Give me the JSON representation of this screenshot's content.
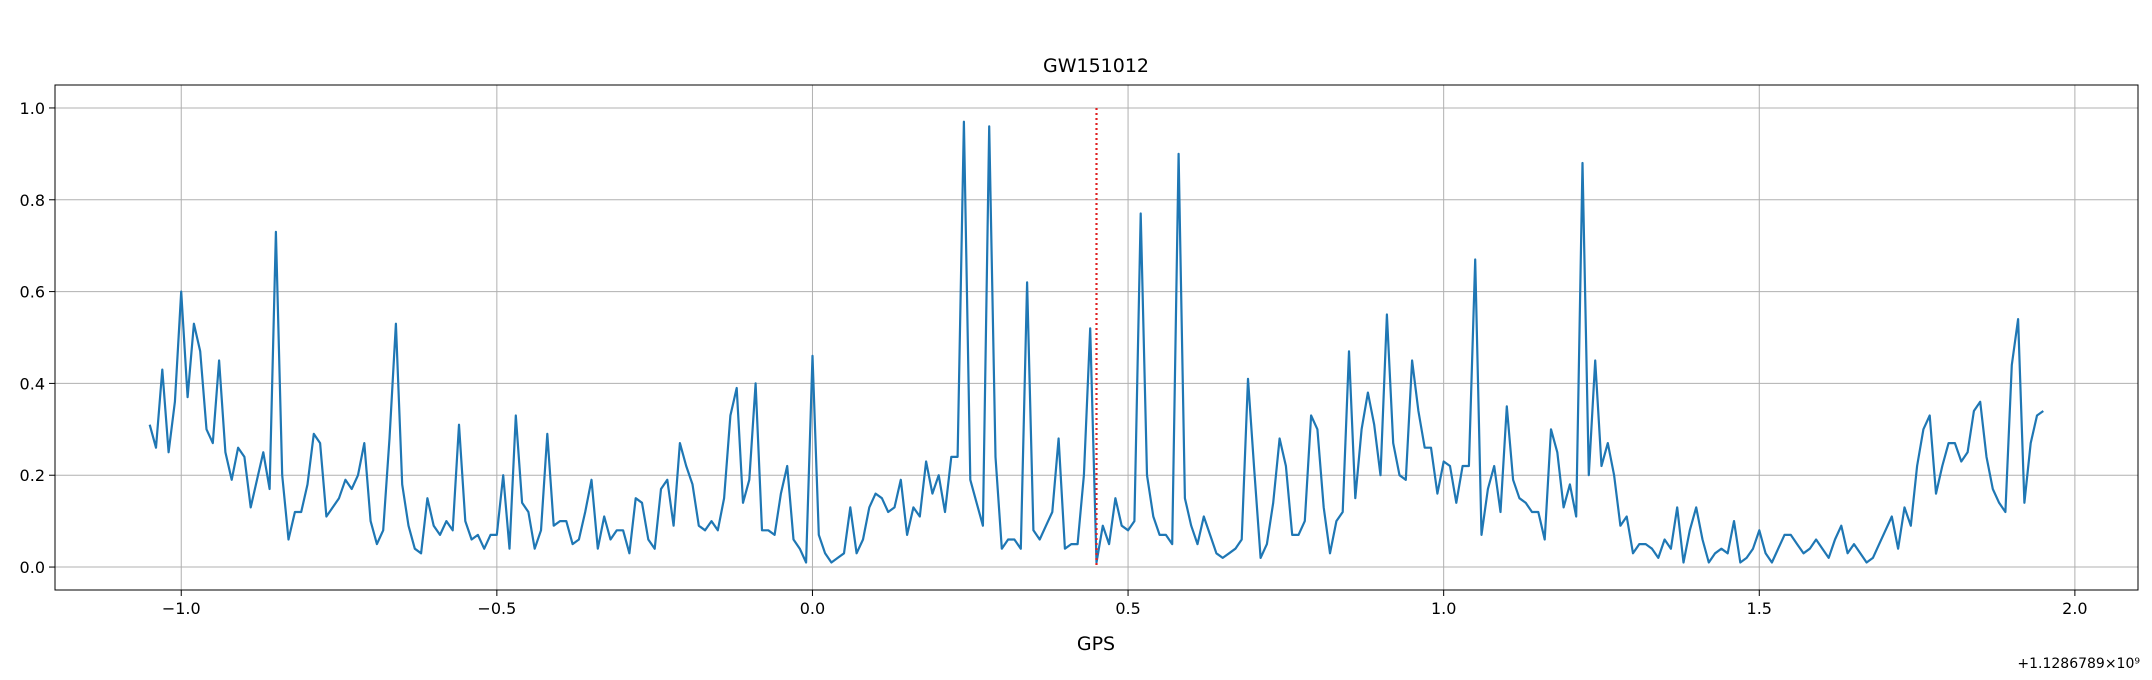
{
  "chart_data": {
    "type": "line",
    "title": "GW151012",
    "xlabel": "GPS",
    "ylabel": "",
    "x_offset_label": "+1.1286789×10⁹",
    "xlim": [
      -1.2,
      2.1
    ],
    "ylim": [
      -0.05,
      1.05
    ],
    "xticks": [
      -1.0,
      -0.5,
      0.0,
      0.5,
      1.0,
      1.5,
      2.0
    ],
    "xtick_labels": [
      "−1.0",
      "−0.5",
      "0.0",
      "0.5",
      "1.0",
      "1.5",
      "2.0"
    ],
    "yticks": [
      0.0,
      0.2,
      0.4,
      0.6,
      0.8,
      1.0
    ],
    "ytick_labels": [
      "0.0",
      "0.2",
      "0.4",
      "0.6",
      "0.8",
      "1.0"
    ],
    "grid": true,
    "series": [
      {
        "color": "#1f77b4",
        "x": [
          -1.05,
          -1.04,
          -1.03,
          -1.02,
          -1.01,
          -1.0,
          -0.99,
          -0.98,
          -0.97,
          -0.96,
          -0.95,
          -0.94,
          -0.93,
          -0.92,
          -0.91,
          -0.9,
          -0.89,
          -0.88,
          -0.87,
          -0.86,
          -0.85,
          -0.84,
          -0.83,
          -0.82,
          -0.81,
          -0.8,
          -0.79,
          -0.78,
          -0.77,
          -0.76,
          -0.75,
          -0.74,
          -0.73,
          -0.72,
          -0.71,
          -0.7,
          -0.69,
          -0.68,
          -0.67,
          -0.66,
          -0.65,
          -0.64,
          -0.63,
          -0.62,
          -0.61,
          -0.6,
          -0.59,
          -0.58,
          -0.57,
          -0.56,
          -0.55,
          -0.54,
          -0.53,
          -0.52,
          -0.51,
          -0.5,
          -0.49,
          -0.48,
          -0.47,
          -0.46,
          -0.45,
          -0.44,
          -0.43,
          -0.42,
          -0.41,
          -0.4,
          -0.39,
          -0.38,
          -0.37,
          -0.36,
          -0.35,
          -0.34,
          -0.33,
          -0.32,
          -0.31,
          -0.3,
          -0.29,
          -0.28,
          -0.27,
          -0.26,
          -0.25,
          -0.24,
          -0.23,
          -0.22,
          -0.21,
          -0.2,
          -0.19,
          -0.18,
          -0.17,
          -0.16,
          -0.15,
          -0.14,
          -0.13,
          -0.12,
          -0.11,
          -0.1,
          -0.09,
          -0.08,
          -0.07,
          -0.06,
          -0.05,
          -0.04,
          -0.03,
          -0.02,
          -0.01,
          0.0,
          0.01,
          0.02,
          0.03,
          0.04,
          0.05,
          0.06,
          0.07,
          0.08,
          0.09,
          0.1,
          0.11,
          0.12,
          0.13,
          0.14,
          0.15,
          0.16,
          0.17,
          0.18,
          0.19,
          0.2,
          0.21,
          0.22,
          0.23,
          0.24,
          0.25,
          0.26,
          0.27,
          0.28,
          0.29,
          0.3,
          0.31,
          0.32,
          0.33,
          0.34,
          0.35,
          0.36,
          0.37,
          0.38,
          0.39,
          0.4,
          0.41,
          0.42,
          0.43,
          0.44,
          0.45,
          0.46,
          0.47,
          0.48,
          0.49,
          0.5,
          0.51,
          0.52,
          0.53,
          0.54,
          0.55,
          0.56,
          0.57,
          0.58,
          0.59,
          0.6,
          0.61,
          0.62,
          0.63,
          0.64,
          0.65,
          0.66,
          0.67,
          0.68,
          0.69,
          0.7,
          0.71,
          0.72,
          0.73,
          0.74,
          0.75,
          0.76,
          0.77,
          0.78,
          0.79,
          0.8,
          0.81,
          0.82,
          0.83,
          0.84,
          0.85,
          0.86,
          0.87,
          0.88,
          0.89,
          0.9,
          0.91,
          0.92,
          0.93,
          0.94,
          0.95,
          0.96,
          0.97,
          0.98,
          0.99,
          1.0,
          1.01,
          1.02,
          1.03,
          1.04,
          1.05,
          1.06,
          1.07,
          1.08,
          1.09,
          1.1,
          1.11,
          1.12,
          1.13,
          1.14,
          1.15,
          1.16,
          1.17,
          1.18,
          1.19,
          1.2,
          1.21,
          1.22,
          1.23,
          1.24,
          1.25,
          1.26,
          1.27,
          1.28,
          1.29,
          1.3,
          1.31,
          1.32,
          1.33,
          1.34,
          1.35,
          1.36,
          1.37,
          1.38,
          1.39,
          1.4,
          1.41,
          1.42,
          1.43,
          1.44,
          1.45,
          1.46,
          1.47,
          1.48,
          1.49,
          1.5,
          1.51,
          1.52,
          1.53,
          1.54,
          1.55,
          1.56,
          1.57,
          1.58,
          1.59,
          1.6,
          1.61,
          1.62,
          1.63,
          1.64,
          1.65,
          1.66,
          1.67,
          1.68,
          1.69,
          1.7,
          1.71,
          1.72,
          1.73,
          1.74,
          1.75,
          1.76,
          1.77,
          1.78,
          1.79,
          1.8,
          1.81,
          1.82,
          1.83,
          1.84,
          1.85,
          1.86,
          1.87,
          1.88,
          1.89,
          1.9,
          1.91,
          1.92,
          1.93,
          1.94,
          1.95
        ],
        "y": [
          0.31,
          0.26,
          0.43,
          0.25,
          0.36,
          0.6,
          0.37,
          0.53,
          0.47,
          0.3,
          0.27,
          0.45,
          0.25,
          0.19,
          0.26,
          0.24,
          0.13,
          0.19,
          0.25,
          0.17,
          0.73,
          0.2,
          0.06,
          0.12,
          0.12,
          0.18,
          0.29,
          0.27,
          0.11,
          0.13,
          0.15,
          0.19,
          0.17,
          0.2,
          0.27,
          0.1,
          0.05,
          0.08,
          0.28,
          0.53,
          0.18,
          0.09,
          0.04,
          0.03,
          0.15,
          0.09,
          0.07,
          0.1,
          0.08,
          0.31,
          0.1,
          0.06,
          0.07,
          0.04,
          0.07,
          0.07,
          0.2,
          0.04,
          0.33,
          0.14,
          0.12,
          0.04,
          0.08,
          0.29,
          0.09,
          0.1,
          0.1,
          0.05,
          0.06,
          0.12,
          0.19,
          0.04,
          0.11,
          0.06,
          0.08,
          0.08,
          0.03,
          0.15,
          0.14,
          0.06,
          0.04,
          0.17,
          0.19,
          0.09,
          0.27,
          0.22,
          0.18,
          0.09,
          0.08,
          0.1,
          0.08,
          0.15,
          0.33,
          0.39,
          0.14,
          0.19,
          0.4,
          0.08,
          0.08,
          0.07,
          0.16,
          0.22,
          0.06,
          0.04,
          0.01,
          0.46,
          0.07,
          0.03,
          0.01,
          0.02,
          0.03,
          0.13,
          0.03,
          0.06,
          0.13,
          0.16,
          0.15,
          0.12,
          0.13,
          0.19,
          0.07,
          0.13,
          0.11,
          0.23,
          0.16,
          0.2,
          0.12,
          0.24,
          0.24,
          0.97,
          0.19,
          0.14,
          0.09,
          0.96,
          0.24,
          0.04,
          0.06,
          0.06,
          0.04,
          0.62,
          0.08,
          0.06,
          0.09,
          0.12,
          0.28,
          0.04,
          0.05,
          0.05,
          0.2,
          0.52,
          0.01,
          0.09,
          0.05,
          0.15,
          0.09,
          0.08,
          0.1,
          0.77,
          0.2,
          0.11,
          0.07,
          0.07,
          0.05,
          0.9,
          0.15,
          0.09,
          0.05,
          0.11,
          0.07,
          0.03,
          0.02,
          0.03,
          0.04,
          0.06,
          0.41,
          0.21,
          0.02,
          0.05,
          0.14,
          0.28,
          0.22,
          0.07,
          0.07,
          0.1,
          0.33,
          0.3,
          0.13,
          0.03,
          0.1,
          0.12,
          0.47,
          0.15,
          0.3,
          0.38,
          0.31,
          0.2,
          0.55,
          0.27,
          0.2,
          0.19,
          0.45,
          0.34,
          0.26,
          0.26,
          0.16,
          0.23,
          0.22,
          0.14,
          0.22,
          0.22,
          0.67,
          0.07,
          0.17,
          0.22,
          0.12,
          0.35,
          0.19,
          0.15,
          0.14,
          0.12,
          0.12,
          0.06,
          0.3,
          0.25,
          0.13,
          0.18,
          0.11,
          0.88,
          0.2,
          0.45,
          0.22,
          0.27,
          0.2,
          0.09,
          0.11,
          0.03,
          0.05,
          0.05,
          0.04,
          0.02,
          0.06,
          0.04,
          0.13,
          0.01,
          0.08,
          0.13,
          0.06,
          0.01,
          0.03,
          0.04,
          0.03,
          0.1,
          0.01,
          0.02,
          0.04,
          0.08,
          0.03,
          0.01,
          0.04,
          0.07,
          0.07,
          0.05,
          0.03,
          0.04,
          0.06,
          0.04,
          0.02,
          0.06,
          0.09,
          0.03,
          0.05,
          0.03,
          0.01,
          0.02,
          0.05,
          0.08,
          0.11,
          0.04,
          0.13,
          0.09,
          0.22,
          0.3,
          0.33,
          0.16,
          0.22,
          0.27,
          0.27,
          0.23,
          0.25,
          0.34,
          0.36,
          0.24,
          0.17,
          0.14,
          0.12,
          0.44,
          0.54,
          0.14,
          0.27,
          0.33,
          0.34
        ]
      }
    ],
    "vline": {
      "x": 0.45,
      "color": "#e02020",
      "style": "dotted"
    }
  }
}
